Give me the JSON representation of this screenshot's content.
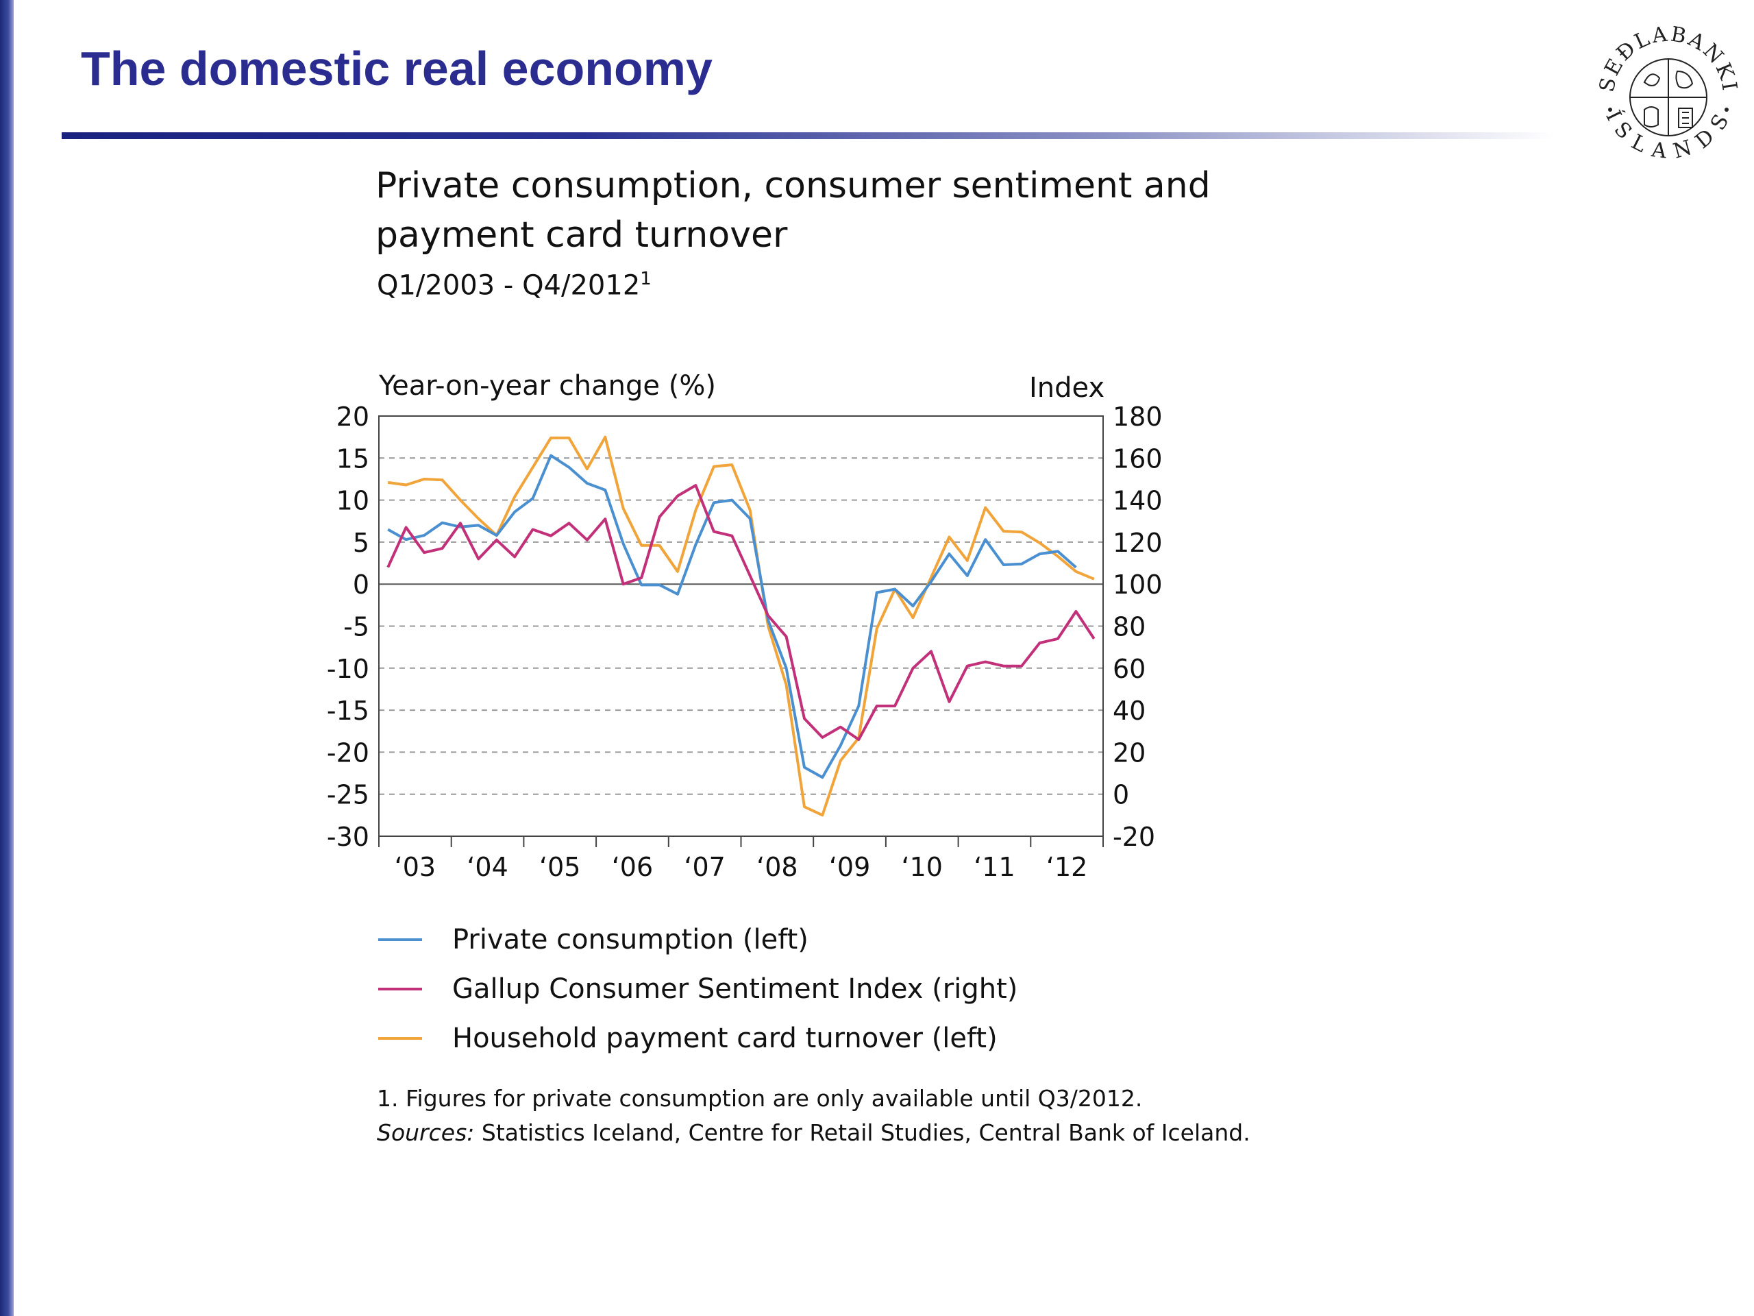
{
  "slide": {
    "title": "The domestic real economy",
    "logo_text_top": "SEÐLABANKI",
    "logo_text_bottom": "ÍSLANDS"
  },
  "chart": {
    "title": "Private consumption, consumer sentiment and payment card turnover",
    "subtitle": "Q1/2003 - Q4/2012",
    "subtitle_footnote_mark": "1",
    "left_axis_label": "Year-on-year change (%)",
    "right_axis_label": "Index",
    "footnote": "1. Figures for private consumption are only available until Q3/2012.",
    "sources_label": "Sources:",
    "sources_text": " Statistics Iceland, Centre for Retail Studies, Central Bank of Iceland."
  },
  "chart_data": {
    "type": "line",
    "x_tick_labels": [
      "‘03",
      "‘04",
      "‘05",
      "‘06",
      "‘07",
      "‘08",
      "‘09",
      "‘10",
      "‘11",
      "‘12"
    ],
    "x_quarters_start": "Q1/2003",
    "x_quarters_end": "Q4/2012",
    "y_left_ticks": [
      20,
      15,
      10,
      5,
      0,
      -5,
      -10,
      -15,
      -20,
      -25,
      -30
    ],
    "y_right_ticks": [
      180,
      160,
      140,
      120,
      100,
      80,
      60,
      40,
      20,
      0,
      -20
    ],
    "y_left_lim": [
      -30,
      20
    ],
    "y_right_lim": [
      -20,
      180
    ],
    "grid": "dashed horizontal",
    "legend_position": "bottom",
    "series": [
      {
        "name": "Private consumption (left)",
        "axis": "left",
        "color": "#4a8fd0",
        "values": [
          6.5,
          5.3,
          5.8,
          7.3,
          6.8,
          7.0,
          5.8,
          8.6,
          10.2,
          15.3,
          13.9,
          12.0,
          11.2,
          4.8,
          -0.1,
          -0.1,
          -1.2,
          4.7,
          9.7,
          10.0,
          7.8,
          -4.3,
          -10.0,
          -21.8,
          -23.0,
          -19.2,
          -14.5,
          -1.0,
          -0.6,
          -2.6,
          0.3,
          3.6,
          1.0,
          5.3,
          2.3,
          2.4,
          3.6,
          3.9,
          2.0
        ]
      },
      {
        "name": "Gallup Consumer Sentiment Index (right)",
        "axis": "right",
        "color": "#c2307a",
        "values": [
          108,
          127,
          115,
          117,
          129,
          112,
          121,
          113,
          126,
          123,
          129,
          121,
          131,
          100,
          103,
          132,
          142,
          147,
          125,
          123,
          104,
          85,
          75,
          36,
          27,
          32,
          26,
          42,
          42,
          60,
          68,
          44,
          61,
          63,
          61,
          61,
          72,
          74,
          87,
          74
        ]
      },
      {
        "name": "Household payment card turnover (left)",
        "axis": "left",
        "color": "#f0a43a",
        "values": [
          12.1,
          11.8,
          12.5,
          12.4,
          10.0,
          7.8,
          5.8,
          10.4,
          13.9,
          17.4,
          17.4,
          13.7,
          17.5,
          9.0,
          4.6,
          4.6,
          1.5,
          8.8,
          14.0,
          14.2,
          8.8,
          -5.0,
          -12.0,
          -26.5,
          -27.5,
          -21.0,
          -18.3,
          -5.3,
          -0.6,
          -4.0,
          0.8,
          5.6,
          2.8,
          9.1,
          6.3,
          6.2,
          4.9,
          3.3,
          1.5,
          0.6
        ]
      }
    ]
  }
}
